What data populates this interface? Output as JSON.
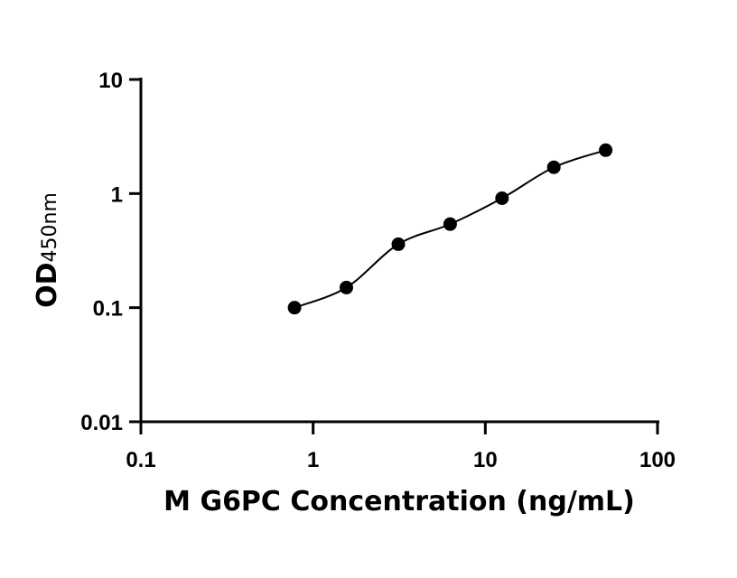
{
  "chart_data": {
    "type": "scatter",
    "x_scale": "log",
    "y_scale": "log",
    "xlim": [
      0.1,
      100
    ],
    "ylim": [
      0.01,
      10
    ],
    "x_ticks": [
      "0.1",
      "1",
      "10",
      "100"
    ],
    "y_ticks": [
      "0.01",
      "0.1",
      "1",
      "10"
    ],
    "xlabel": "M G6PC Concentration (ng/mL)",
    "ylabel_main": "OD",
    "ylabel_sub": "450nm",
    "grid": false,
    "legend": "none",
    "colors": {
      "points": "#000000",
      "curve": "#000000",
      "axes": "#000000"
    },
    "series": [
      {
        "x": [
          0.78,
          1.56,
          3.125,
          6.25,
          12.5,
          25,
          50
        ],
        "y": [
          0.1,
          0.15,
          0.36,
          0.54,
          0.91,
          1.7,
          2.4
        ],
        "fit_curve": true
      }
    ]
  }
}
